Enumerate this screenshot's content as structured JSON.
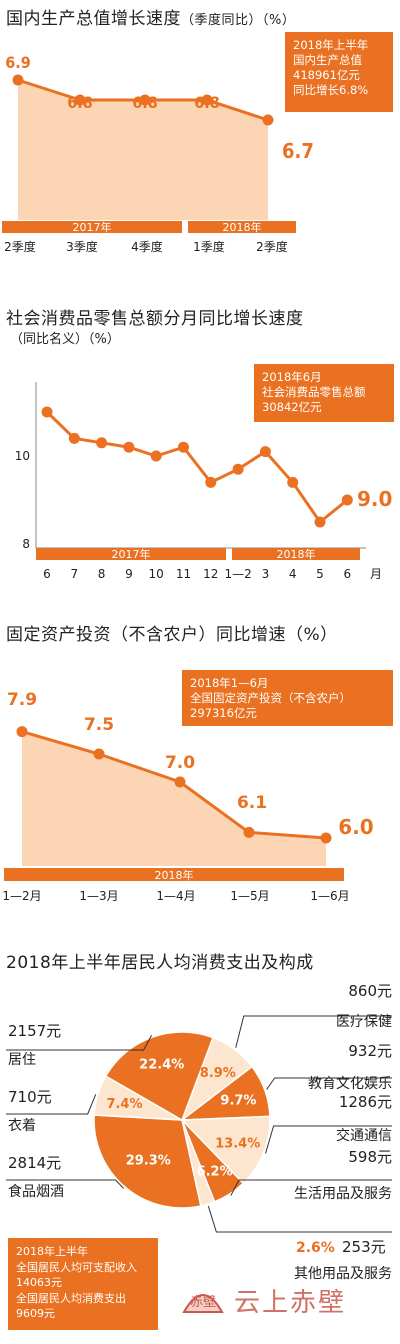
{
  "colors": {
    "accent": "#ea7122",
    "fill": "#fbd5b4",
    "light": "#fde6cf",
    "grid": "#bbbbbb"
  },
  "chart_data": [
    {
      "type": "area",
      "title": "国内生产总值增长速度",
      "unit": "（季度同比）（%）",
      "categories": [
        "2季度",
        "3季度",
        "4季度",
        "1季度",
        "2季度"
      ],
      "groups": [
        {
          "label": "2017年",
          "span": [
            0,
            2
          ]
        },
        {
          "label": "2018年",
          "span": [
            3,
            4
          ]
        }
      ],
      "values": [
        6.9,
        6.8,
        6.8,
        6.8,
        6.7
      ],
      "value_labels": [
        "6.9",
        "6.8",
        "6.8",
        "6.8",
        "6.7"
      ],
      "ylim": [
        6.2,
        7.0
      ],
      "note": [
        "2018年上半年",
        "国内生产总值",
        "418961亿元",
        "同比增长6.8%"
      ]
    },
    {
      "type": "line",
      "title": "社会消费品零售总额分月同比增长速度",
      "unit": "（同比名义）（%）",
      "categories": [
        "6",
        "7",
        "8",
        "9",
        "10",
        "11",
        "12",
        "1—2",
        "3",
        "4",
        "5",
        "6"
      ],
      "month_suffix": "月",
      "groups": [
        {
          "label": "2017年",
          "span": [
            0,
            6
          ]
        },
        {
          "label": "2018年",
          "span": [
            7,
            11
          ]
        }
      ],
      "values": [
        11.0,
        10.4,
        10.3,
        10.2,
        10.0,
        10.2,
        9.4,
        9.7,
        10.1,
        9.4,
        8.5,
        9.0
      ],
      "last_label": "9.0",
      "yticks": [
        "10",
        "8"
      ],
      "ylim": [
        8,
        11.6
      ],
      "note": [
        "2018年6月",
        "社会消费品零售总额",
        "30842亿元"
      ]
    },
    {
      "type": "area",
      "title": "固定资产投资（不含农户）同比增速（%）",
      "categories": [
        "1—2月",
        "1—3月",
        "1—4月",
        "1—5月",
        "1—6月"
      ],
      "groups": [
        {
          "label": "2018年",
          "span": [
            0,
            4
          ]
        }
      ],
      "values": [
        7.9,
        7.5,
        7.0,
        6.1,
        6.0
      ],
      "value_labels": [
        "7.9",
        "7.5",
        "7.0",
        "6.1",
        "6.0"
      ],
      "ylim": [
        5.5,
        8.0
      ],
      "note": [
        "2018年1—6月",
        "全国固定资产投资（不含农户）",
        "297316亿元"
      ]
    },
    {
      "type": "pie",
      "title": "2018年上半年居民人均消费支出及构成",
      "slices": [
        {
          "name": "医疗保健",
          "amount": "860元",
          "pct": "8.9%",
          "value": 8.9
        },
        {
          "name": "教育文化娱乐",
          "amount": "932元",
          "pct": "9.7%",
          "value": 9.7
        },
        {
          "name": "交通通信",
          "amount": "1286元",
          "pct": "13.4%",
          "value": 13.4
        },
        {
          "name": "生活用品及服务",
          "amount": "598元",
          "pct": "6.2%",
          "value": 6.2
        },
        {
          "name": "其他用品及服务",
          "amount": "253元",
          "pct": "2.6%",
          "value": 2.6
        },
        {
          "name": "食品烟酒",
          "amount": "2814元",
          "pct": "29.3%",
          "value": 29.3
        },
        {
          "name": "衣着",
          "amount": "710元",
          "pct": "7.4%",
          "value": 7.4
        },
        {
          "name": "居住",
          "amount": "2157元",
          "pct": "22.4%",
          "value": 22.4
        }
      ],
      "note": [
        "2018年上半年",
        "全国居民人均可支配收入",
        "14063元",
        "全国居民人均消费支出",
        "9609元"
      ]
    }
  ],
  "watermark": {
    "text": "云上赤壁",
    "seal": "赤壁"
  }
}
